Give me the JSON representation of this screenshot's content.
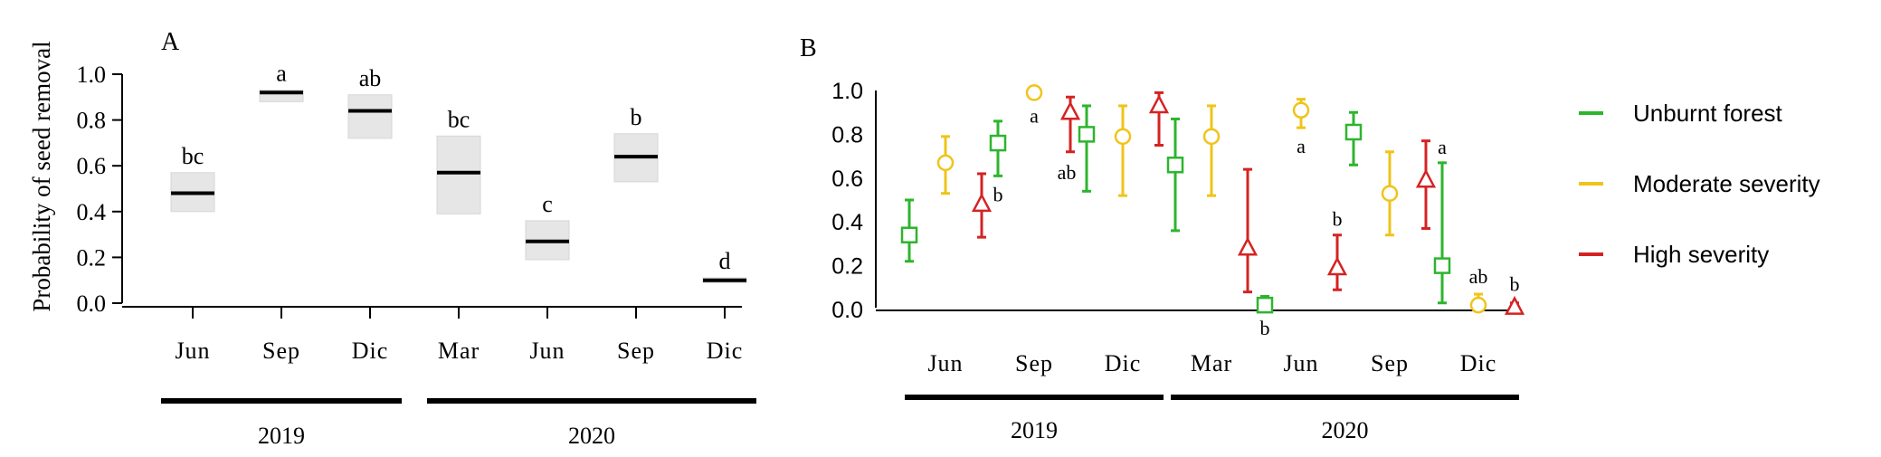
{
  "chart_data": [
    {
      "type": "box",
      "panel_label": "A",
      "ylabel": "Probability of seed removal",
      "ylim": [
        0,
        1
      ],
      "yticks": [
        "0.0",
        "0.2",
        "0.4",
        "0.6",
        "0.8",
        "1.0"
      ],
      "categories": [
        "Jun",
        "Sep",
        "Dic",
        "Mar",
        "Jun",
        "Sep",
        "Dic"
      ],
      "years": [
        {
          "label": "2019",
          "span": [
            0,
            2
          ]
        },
        {
          "label": "2020",
          "span": [
            3,
            6
          ]
        }
      ],
      "values": [
        0.48,
        0.92,
        0.84,
        0.57,
        0.27,
        0.64,
        0.1
      ],
      "lower": [
        0.4,
        0.88,
        0.72,
        0.39,
        0.19,
        0.53,
        0.09
      ],
      "upper": [
        0.57,
        0.93,
        0.91,
        0.73,
        0.36,
        0.74,
        0.11
      ],
      "letters": [
        "bc",
        "a",
        "ab",
        "bc",
        "c",
        "b",
        "d"
      ],
      "box_color": "#e6e6e6",
      "line_color": "#000000"
    },
    {
      "type": "scatter",
      "panel_label": "B",
      "ylim": [
        0,
        1
      ],
      "yticks": [
        "0.0",
        "0.2",
        "0.4",
        "0.6",
        "0.8",
        "1.0"
      ],
      "categories": [
        "Jun",
        "Sep",
        "Dic",
        "Mar",
        "Jun",
        "Sep",
        "Dic"
      ],
      "years": [
        {
          "label": "2019",
          "span": [
            0,
            2
          ]
        },
        {
          "label": "2020",
          "span": [
            3,
            6
          ]
        }
      ],
      "series": [
        {
          "name": "Unburnt forest",
          "color": "#2db52d",
          "marker": "square",
          "values": [
            0.34,
            0.76,
            0.8,
            0.66,
            0.02,
            0.81,
            0.2
          ],
          "lower": [
            0.22,
            0.61,
            0.54,
            0.36,
            0.0,
            0.66,
            0.03
          ],
          "upper": [
            0.5,
            0.86,
            0.93,
            0.87,
            0.06,
            0.9,
            0.67
          ],
          "letters": [
            "",
            "b",
            "",
            "",
            "b",
            "",
            "a"
          ]
        },
        {
          "name": "Moderate severity",
          "color": "#f0c419",
          "marker": "circle",
          "values": [
            0.67,
            0.99,
            0.79,
            0.79,
            0.91,
            0.53,
            0.02
          ],
          "lower": [
            0.53,
            0.97,
            0.52,
            0.52,
            0.83,
            0.34,
            0.0
          ],
          "upper": [
            0.79,
            1.0,
            0.93,
            0.93,
            0.96,
            0.72,
            0.07
          ],
          "letters": [
            "",
            "a",
            "",
            "",
            "a",
            "",
            "ab"
          ]
        },
        {
          "name": "High severity",
          "color": "#d42323",
          "marker": "triangle",
          "values": [
            0.48,
            0.9,
            0.93,
            0.28,
            0.19,
            0.59,
            0.01
          ],
          "lower": [
            0.33,
            0.72,
            0.75,
            0.08,
            0.09,
            0.37,
            0.0
          ],
          "upper": [
            0.62,
            0.97,
            0.99,
            0.64,
            0.34,
            0.77,
            0.03
          ],
          "letters": [
            "",
            "ab",
            "",
            "",
            "b",
            "",
            "b"
          ]
        }
      ],
      "legend_position": "right"
    }
  ]
}
